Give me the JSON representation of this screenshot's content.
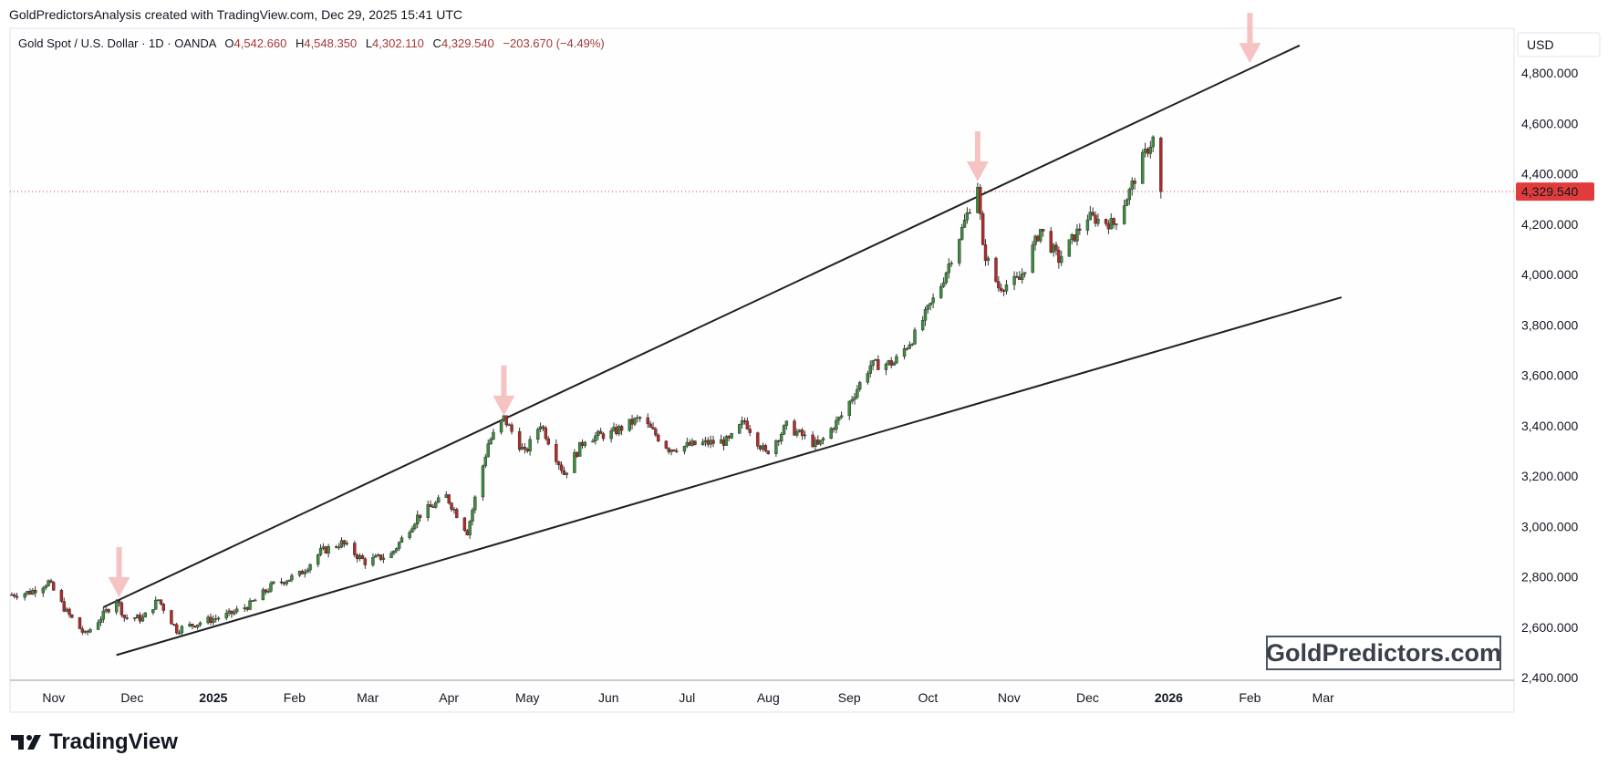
{
  "header": {
    "caption": "GoldPredictorsAnalysis created with TradingView.com, Dec 29, 2025 15:41 UTC"
  },
  "legend": {
    "symbol": "Gold Spot / U.S. Dollar · 1D · OANDA",
    "o_label": "O",
    "o_value": "4,542.660",
    "h_label": "H",
    "h_value": "4,548.350",
    "l_label": "L",
    "l_value": "4,302.110",
    "c_label": "C",
    "c_value": "4,329.540",
    "change": "−203.670 (−4.49%)"
  },
  "currency_button": "USD",
  "last_price_label": "4,329.540",
  "watermark": "GoldPredictors.com",
  "brand": "TradingView",
  "colors": {
    "up": "#3d8b3d",
    "down": "#b22a2a",
    "trendline": "#1f1f1f",
    "arrow": "#f5b9b9",
    "price_line": "#d94444",
    "last_price_bg": "#e03c3c"
  },
  "chart_data": {
    "type": "candlestick",
    "title": "Gold Spot / U.S. Dollar · 1D · OANDA",
    "y_ticks": [
      "2,400.000",
      "2,600.000",
      "2,800.000",
      "3,000.000",
      "3,200.000",
      "3,400.000",
      "3,600.000",
      "3,800.000",
      "4,000.000",
      "4,200.000",
      "4,400.000",
      "4,600.000",
      "4,800.000"
    ],
    "y_tick_values": [
      2400,
      2600,
      2800,
      3000,
      3200,
      3400,
      3600,
      3800,
      4000,
      4200,
      4400,
      4600,
      4800
    ],
    "ylim": [
      2390,
      4960
    ],
    "x_ticks": [
      {
        "label": "Nov",
        "date": "2024-11-01",
        "bold": false
      },
      {
        "label": "Dec",
        "date": "2024-12-01",
        "bold": false
      },
      {
        "label": "2025",
        "date": "2025-01-01",
        "bold": true
      },
      {
        "label": "Feb",
        "date": "2025-02-01",
        "bold": false
      },
      {
        "label": "Mar",
        "date": "2025-03-01",
        "bold": false
      },
      {
        "label": "Apr",
        "date": "2025-04-01",
        "bold": false
      },
      {
        "label": "May",
        "date": "2025-05-01",
        "bold": false
      },
      {
        "label": "Jun",
        "date": "2025-06-01",
        "bold": false
      },
      {
        "label": "Jul",
        "date": "2025-07-01",
        "bold": false
      },
      {
        "label": "Aug",
        "date": "2025-08-01",
        "bold": false
      },
      {
        "label": "Sep",
        "date": "2025-09-01",
        "bold": false
      },
      {
        "label": "Oct",
        "date": "2025-10-01",
        "bold": false
      },
      {
        "label": "Nov",
        "date": "2025-11-01",
        "bold": false
      },
      {
        "label": "Dec",
        "date": "2025-12-01",
        "bold": false
      },
      {
        "label": "2026",
        "date": "2026-01-01",
        "bold": true
      },
      {
        "label": "Feb",
        "date": "2026-02-01",
        "bold": false
      },
      {
        "label": "Mar",
        "date": "2026-03-01",
        "bold": false
      }
    ],
    "closes": [
      {
        "date": "2024-10-16",
        "close": 2730
      },
      {
        "date": "2024-10-23",
        "close": 2740
      },
      {
        "date": "2024-10-30",
        "close": 2780
      },
      {
        "date": "2024-11-06",
        "close": 2660
      },
      {
        "date": "2024-11-13",
        "close": 2570
      },
      {
        "date": "2024-11-20",
        "close": 2650
      },
      {
        "date": "2024-11-25",
        "close": 2715
      },
      {
        "date": "2024-11-28",
        "close": 2640
      },
      {
        "date": "2024-12-05",
        "close": 2635
      },
      {
        "date": "2024-12-11",
        "close": 2710
      },
      {
        "date": "2024-12-18",
        "close": 2590
      },
      {
        "date": "2024-12-27",
        "close": 2620
      },
      {
        "date": "2025-01-07",
        "close": 2650
      },
      {
        "date": "2025-01-15",
        "close": 2690
      },
      {
        "date": "2025-01-24",
        "close": 2770
      },
      {
        "date": "2025-02-03",
        "close": 2810
      },
      {
        "date": "2025-02-11",
        "close": 2900
      },
      {
        "date": "2025-02-19",
        "close": 2935
      },
      {
        "date": "2025-02-28",
        "close": 2860
      },
      {
        "date": "2025-03-10",
        "close": 2890
      },
      {
        "date": "2025-03-20",
        "close": 3040
      },
      {
        "date": "2025-03-31",
        "close": 3120
      },
      {
        "date": "2025-04-08",
        "close": 2980
      },
      {
        "date": "2025-04-16",
        "close": 3330
      },
      {
        "date": "2025-04-22",
        "close": 3430
      },
      {
        "date": "2025-04-30",
        "close": 3290
      },
      {
        "date": "2025-05-06",
        "close": 3410
      },
      {
        "date": "2025-05-15",
        "close": 3210
      },
      {
        "date": "2025-05-23",
        "close": 3350
      },
      {
        "date": "2025-06-02",
        "close": 3370
      },
      {
        "date": "2025-06-13",
        "close": 3430
      },
      {
        "date": "2025-06-24",
        "close": 3310
      },
      {
        "date": "2025-07-07",
        "close": 3330
      },
      {
        "date": "2025-07-17",
        "close": 3340
      },
      {
        "date": "2025-07-23",
        "close": 3420
      },
      {
        "date": "2025-07-31",
        "close": 3290
      },
      {
        "date": "2025-08-08",
        "close": 3400
      },
      {
        "date": "2025-08-20",
        "close": 3320
      },
      {
        "date": "2025-08-29",
        "close": 3440
      },
      {
        "date": "2025-09-09",
        "close": 3640
      },
      {
        "date": "2025-09-18",
        "close": 3650
      },
      {
        "date": "2025-09-26",
        "close": 3760
      },
      {
        "date": "2025-10-06",
        "close": 3960
      },
      {
        "date": "2025-10-14",
        "close": 4180
      },
      {
        "date": "2025-10-20",
        "close": 4360
      },
      {
        "date": "2025-10-22",
        "close": 4100
      },
      {
        "date": "2025-10-28",
        "close": 3950
      },
      {
        "date": "2025-11-05",
        "close": 3980
      },
      {
        "date": "2025-11-13",
        "close": 4180
      },
      {
        "date": "2025-11-20",
        "close": 4060
      },
      {
        "date": "2025-12-01",
        "close": 4230
      },
      {
        "date": "2025-12-11",
        "close": 4200
      },
      {
        "date": "2025-12-17",
        "close": 4330
      },
      {
        "date": "2025-12-22",
        "close": 4460
      },
      {
        "date": "2025-12-26",
        "close": 4540
      },
      {
        "date": "2025-12-29",
        "close": 4330
      }
    ],
    "last_candle": {
      "date": "2025-12-29",
      "open": 4542.66,
      "high": 4548.35,
      "low": 4302.11,
      "close": 4329.54
    },
    "trendlines": [
      {
        "name": "upper",
        "from": {
          "date": "2024-11-20",
          "value": 2680
        },
        "to": {
          "date": "2026-02-20",
          "value": 4910
        }
      },
      {
        "name": "lower",
        "from": {
          "date": "2024-11-25",
          "value": 2490
        },
        "to": {
          "date": "2026-03-08",
          "value": 3910
        }
      }
    ],
    "arrows": [
      {
        "date": "2024-11-26",
        "value": 2720
      },
      {
        "date": "2025-04-22",
        "value": 3440
      },
      {
        "date": "2025-10-20",
        "value": 4370
      },
      {
        "date": "2026-02-01",
        "value": 4840
      }
    ],
    "grid": false,
    "legend": "top-left"
  }
}
